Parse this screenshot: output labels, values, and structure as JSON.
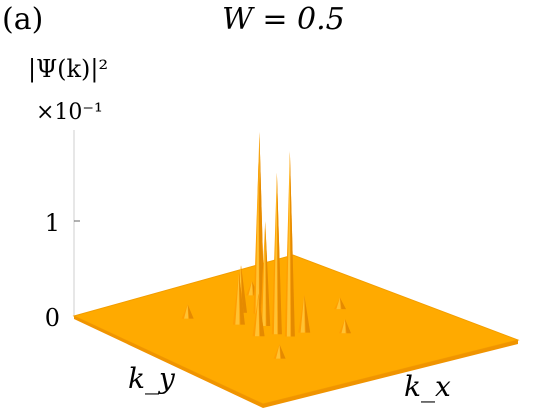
{
  "chart_data": {
    "type": "surface",
    "panel_label": "(a)",
    "title": "W = 0.5",
    "zlabel": "|Ψ(k)|²",
    "z_multiplier": "×10⁻¹",
    "xlabel": "k_x",
    "ylabel": "k_y",
    "z_ticks": [
      "0",
      "1"
    ],
    "zlim": [
      0,
      2
    ],
    "surface_color": "#ffaa00",
    "peaks": [
      {
        "kx": 0.56,
        "ky": 0.46,
        "value": 1.95
      },
      {
        "kx": 0.52,
        "ky": 0.44,
        "value": 1.7
      },
      {
        "kx": 0.3,
        "ky": 0.56,
        "value": 1.85
      },
      {
        "kx": 0.34,
        "ky": 0.52,
        "value": 1.6
      },
      {
        "kx": 0.44,
        "ky": 0.46,
        "value": 1.1
      },
      {
        "kx": 0.38,
        "ky": 0.4,
        "value": 0.55
      },
      {
        "kx": 0.3,
        "ky": 0.48,
        "value": 0.5
      },
      {
        "kx": 0.5,
        "ky": 0.38,
        "value": 0.45
      },
      {
        "kx": 0.56,
        "ky": 0.52,
        "value": 0.4
      },
      {
        "kx": 0.2,
        "ky": 0.62,
        "value": 0.15
      },
      {
        "kx": 0.7,
        "ky": 0.3,
        "value": 0.15
      },
      {
        "kx": 0.24,
        "ky": 0.3,
        "value": 0.15
      },
      {
        "kx": 0.64,
        "ky": 0.62,
        "value": 0.15
      },
      {
        "kx": 0.46,
        "ky": 0.76,
        "value": 0.12
      }
    ]
  }
}
